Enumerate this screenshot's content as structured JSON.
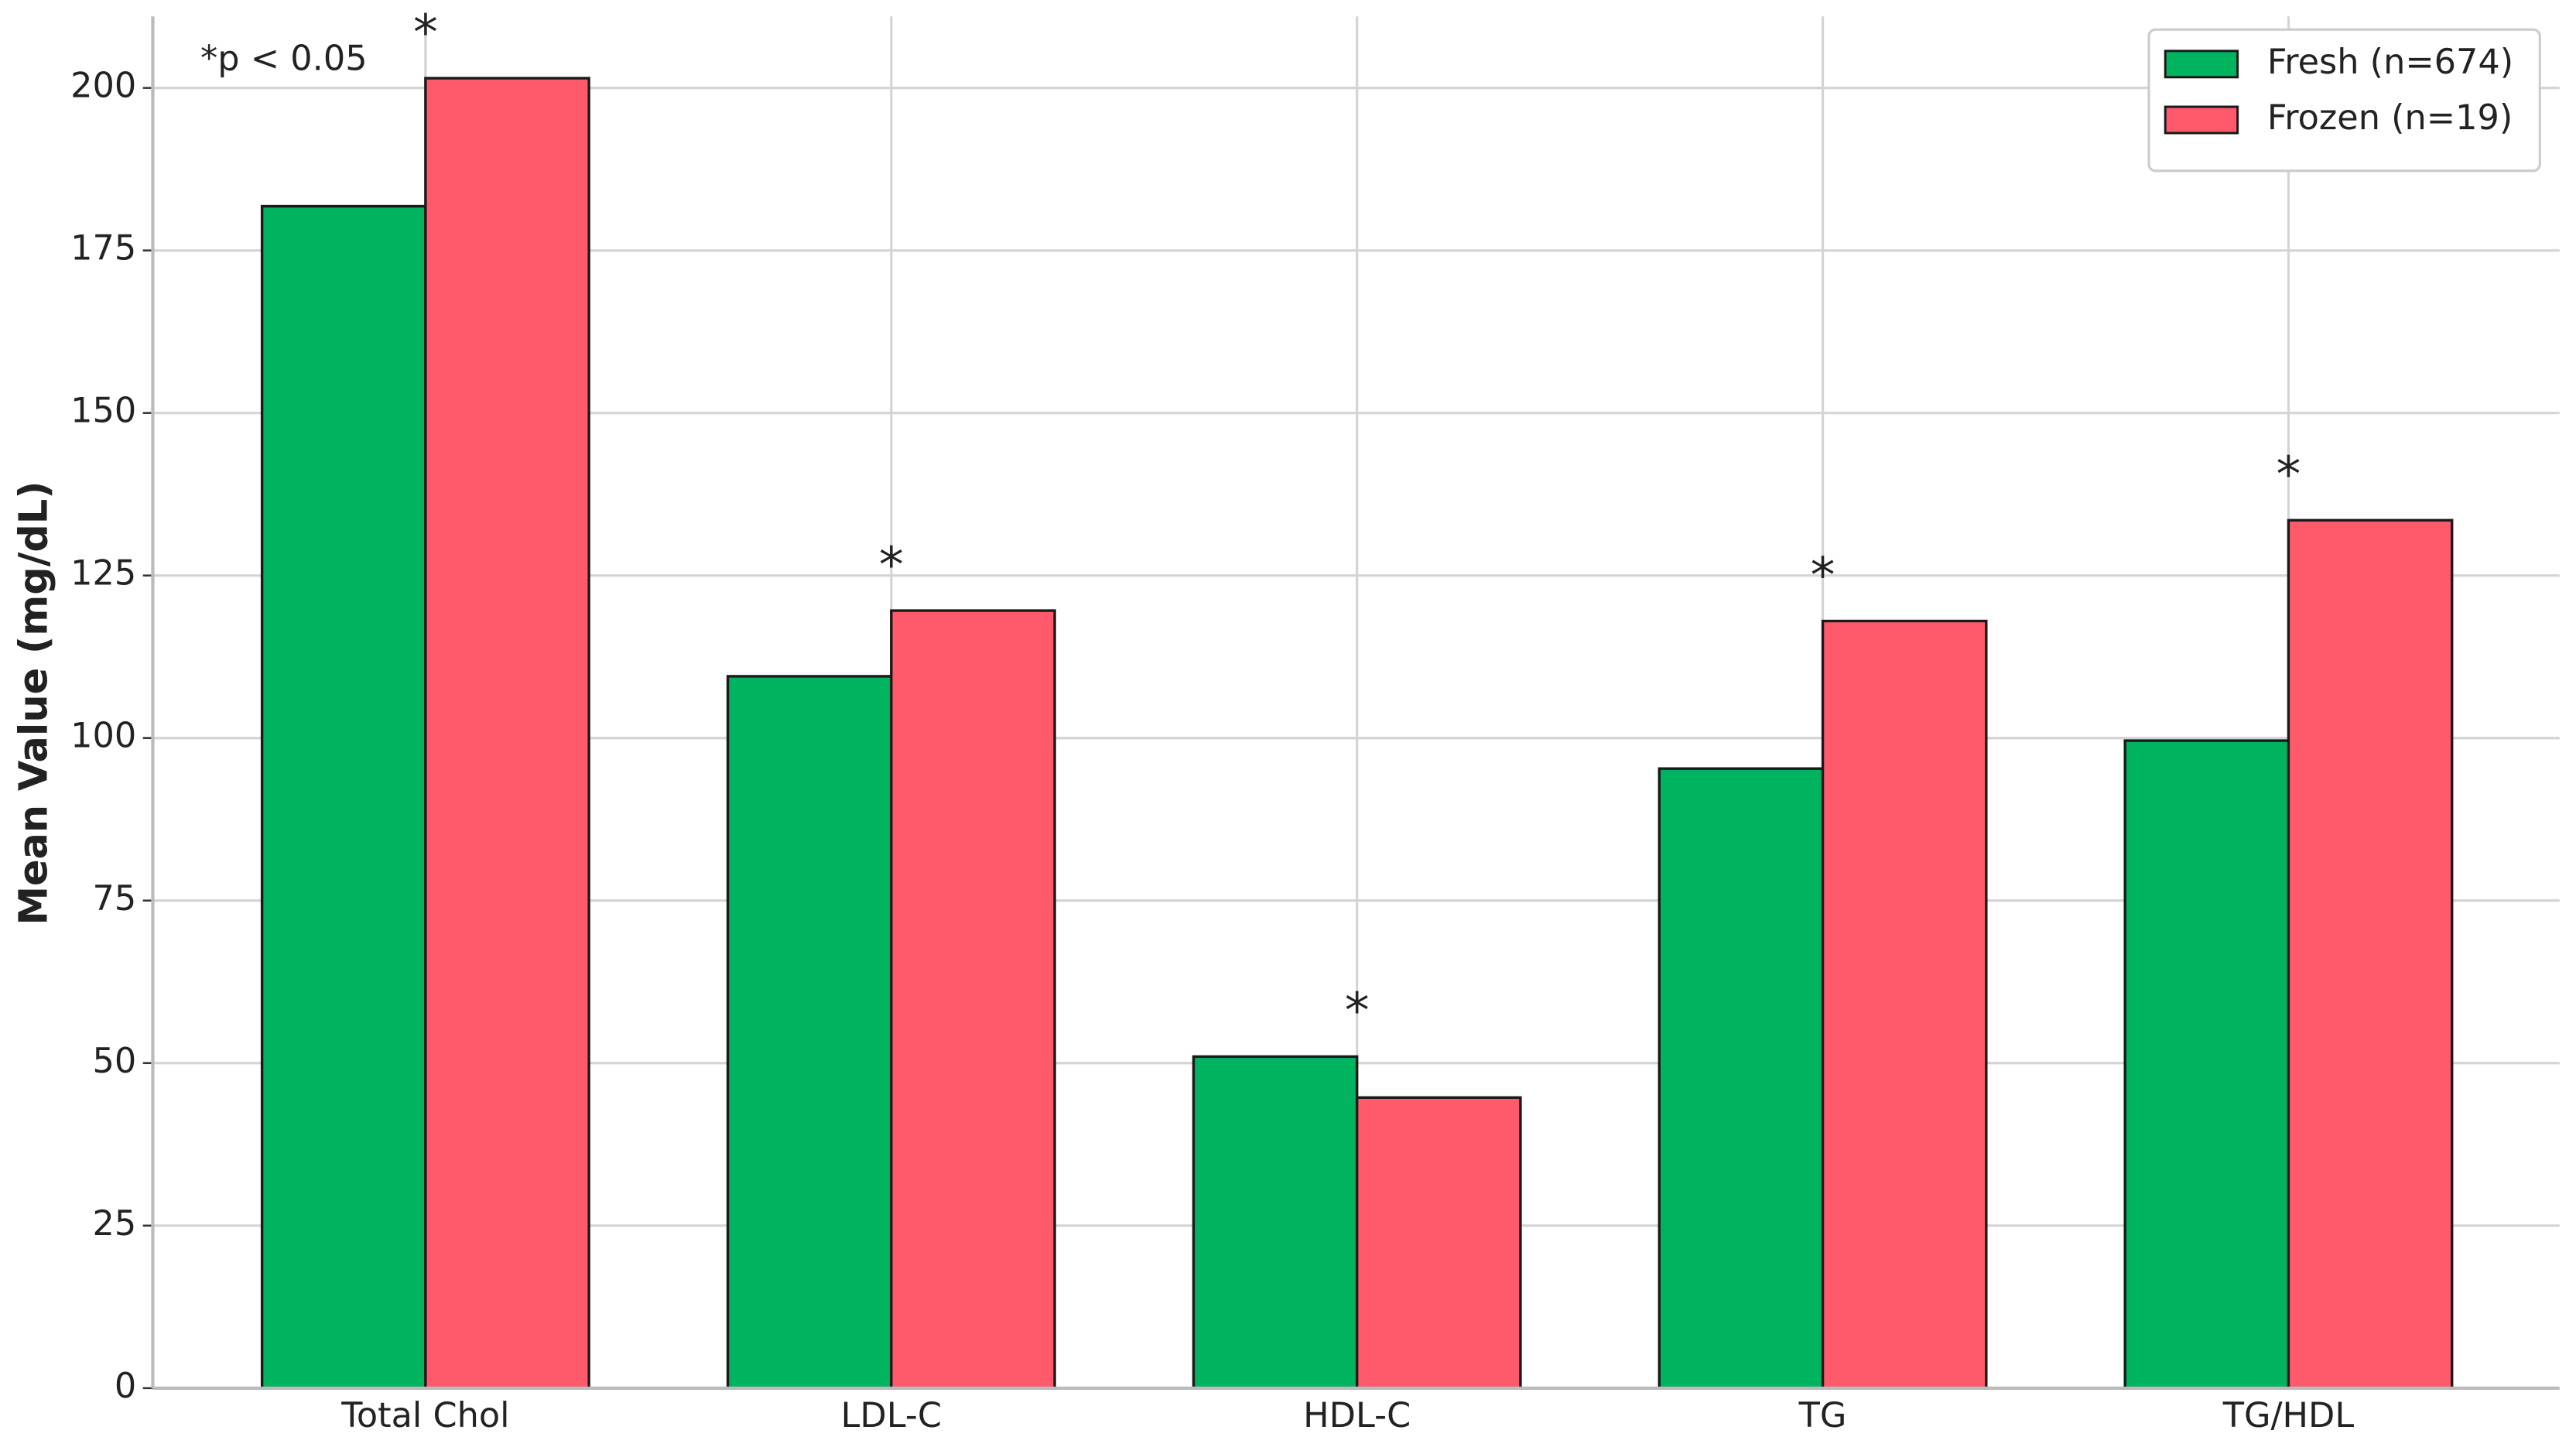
{
  "chart_data": {
    "type": "bar",
    "y_label": "Mean Value (mg/dL)",
    "annotation": "*p < 0.05",
    "categories": [
      "Total Chol",
      "LDL-C",
      "HDL-C",
      "TG",
      "TG/HDL"
    ],
    "significance": [
      "*",
      "*",
      "*",
      "*",
      "*"
    ],
    "series": [
      {
        "name": "Fresh (n=674)",
        "color": "#00b35f",
        "values": [
          181.8,
          109.5,
          51,
          95.3,
          99.6
        ]
      },
      {
        "name": "Frozen (n=19)",
        "color": "#ff5a6b",
        "values": [
          201.5,
          119.6,
          44.7,
          118,
          133.5
        ]
      }
    ],
    "ylim": [
      0,
      211
    ],
    "yticks": [
      0,
      25,
      50,
      75,
      100,
      125,
      150,
      175,
      200
    ],
    "grid": true,
    "legend": "upper right"
  }
}
